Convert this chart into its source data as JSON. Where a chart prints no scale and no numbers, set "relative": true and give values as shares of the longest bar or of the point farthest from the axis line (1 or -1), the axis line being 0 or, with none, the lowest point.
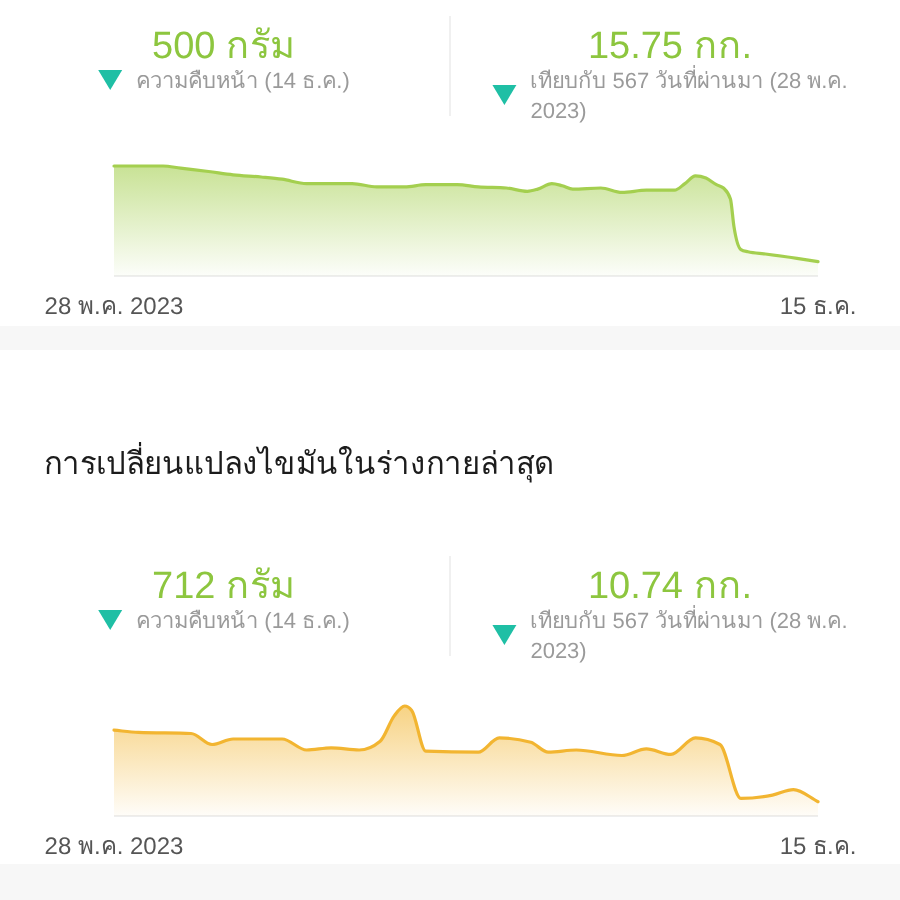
{
  "chart_data": [
    {
      "type": "area",
      "relative": true,
      "annotations": [
        "500 กรัม",
        "ความคืบหน้า (14 ธ.ค.)",
        "15.75 กก.",
        "เทียบกับ 567 วันที่ผ่านมา (28 พ.ค. 2023)"
      ],
      "x": [
        "2023-05-28",
        "2023-06-11",
        "2023-06-16",
        "2023-06-24",
        "2023-07-01",
        "2023-07-09",
        "2023-07-15",
        "2023-07-22",
        "2023-08-04",
        "2023-08-11",
        "2023-08-19",
        "2023-08-25",
        "2023-09-03",
        "2023-09-09",
        "2023-09-17",
        "2023-09-23",
        "2023-09-26",
        "2023-09-30",
        "2023-10-03",
        "2023-10-06",
        "2023-10-14",
        "2023-10-20",
        "2023-10-27",
        "2023-11-04",
        "2023-11-07",
        "2023-11-10",
        "2023-11-13",
        "2023-11-16",
        "2023-11-18",
        "2023-11-20",
        "2023-11-21",
        "2023-11-23",
        "2023-11-25",
        "2023-11-30",
        "2023-12-09",
        "2023-12-15"
      ],
      "values": [
        1,
        1,
        0.98,
        0.95,
        0.92,
        0.9,
        0.88,
        0.84,
        0.84,
        0.81,
        0.81,
        0.83,
        0.83,
        0.81,
        0.8,
        0.77,
        0.79,
        0.84,
        0.82,
        0.79,
        0.8,
        0.76,
        0.78,
        0.78,
        0.84,
        0.91,
        0.89,
        0.83,
        0.8,
        0.7,
        0.45,
        0.24,
        0.22,
        0.2,
        0.16,
        0.13
      ],
      "color": "#a4cf4f",
      "xlim": [
        "2023-05-28",
        "2023-12-15"
      ],
      "xticks": [
        {
          "value": "2023-05-28",
          "label": "28 พ.ค. 2023"
        },
        {
          "value": "2023-12-15",
          "label": "15 ธ.ค."
        }
      ]
    },
    {
      "type": "area",
      "relative": true,
      "title": "การเปลี่ยนแปลงไขมันในร่างกายล่าสุด",
      "annotations": [
        "712 กรัม",
        "ความคืบหน้า (14 ธ.ค.)",
        "10.74 กก.",
        "เทียบกับ 567 วันที่ผ่านมา (28 พ.ค. 2023)"
      ],
      "x": [
        "2023-05-28",
        "2023-06-04",
        "2023-06-19",
        "2023-06-25",
        "2023-07-01",
        "2023-07-15",
        "2023-07-22",
        "2023-07-29",
        "2023-08-06",
        "2023-08-12",
        "2023-08-16",
        "2023-08-19",
        "2023-08-21",
        "2023-08-25",
        "2023-09-09",
        "2023-09-15",
        "2023-09-24",
        "2023-09-29",
        "2023-10-07",
        "2023-10-20",
        "2023-10-27",
        "2023-11-03",
        "2023-11-10",
        "2023-11-17",
        "2023-11-23",
        "2023-12-02",
        "2023-12-08",
        "2023-12-15"
      ],
      "values": [
        0.78,
        0.76,
        0.75,
        0.65,
        0.7,
        0.7,
        0.6,
        0.62,
        0.6,
        0.68,
        0.91,
        1,
        0.96,
        0.59,
        0.58,
        0.71,
        0.67,
        0.58,
        0.6,
        0.55,
        0.61,
        0.56,
        0.71,
        0.65,
        0.16,
        0.19,
        0.24,
        0.13
      ],
      "color": "#f2b531",
      "xlim": [
        "2023-05-28",
        "2023-12-15"
      ],
      "xticks": [
        {
          "value": "2023-05-28",
          "label": "28 พ.ค. 2023"
        },
        {
          "value": "2023-12-15",
          "label": "15 ธ.ค."
        }
      ]
    }
  ]
}
